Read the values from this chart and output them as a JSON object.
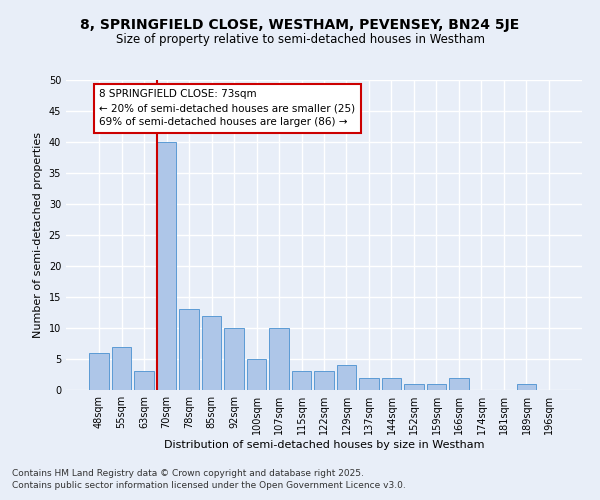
{
  "title1": "8, SPRINGFIELD CLOSE, WESTHAM, PEVENSEY, BN24 5JE",
  "title2": "Size of property relative to semi-detached houses in Westham",
  "xlabel": "Distribution of semi-detached houses by size in Westham",
  "ylabel": "Number of semi-detached properties",
  "categories": [
    "48sqm",
    "55sqm",
    "63sqm",
    "70sqm",
    "78sqm",
    "85sqm",
    "92sqm",
    "100sqm",
    "107sqm",
    "115sqm",
    "122sqm",
    "129sqm",
    "137sqm",
    "144sqm",
    "152sqm",
    "159sqm",
    "166sqm",
    "174sqm",
    "181sqm",
    "189sqm",
    "196sqm"
  ],
  "values": [
    6,
    7,
    3,
    40,
    13,
    12,
    10,
    5,
    10,
    3,
    3,
    4,
    2,
    2,
    1,
    1,
    2,
    0,
    0,
    1,
    0
  ],
  "bar_color": "#aec6e8",
  "bar_edge_color": "#5b9bd5",
  "highlight_index": 3,
  "highlight_color": "#cc0000",
  "annotation_title": "8 SPRINGFIELD CLOSE: 73sqm",
  "annotation_line1": "← 20% of semi-detached houses are smaller (25)",
  "annotation_line2": "69% of semi-detached houses are larger (86) →",
  "annotation_box_color": "#ffffff",
  "annotation_box_edge": "#cc0000",
  "ylim": [
    0,
    50
  ],
  "yticks": [
    0,
    5,
    10,
    15,
    20,
    25,
    30,
    35,
    40,
    45,
    50
  ],
  "footer1": "Contains HM Land Registry data © Crown copyright and database right 2025.",
  "footer2": "Contains public sector information licensed under the Open Government Licence v3.0.",
  "background_color": "#e8eef8",
  "grid_color": "#ffffff",
  "title1_fontsize": 10,
  "title2_fontsize": 8.5,
  "xlabel_fontsize": 8,
  "ylabel_fontsize": 8,
  "tick_fontsize": 7,
  "annotation_fontsize": 7.5,
  "footer_fontsize": 6.5
}
